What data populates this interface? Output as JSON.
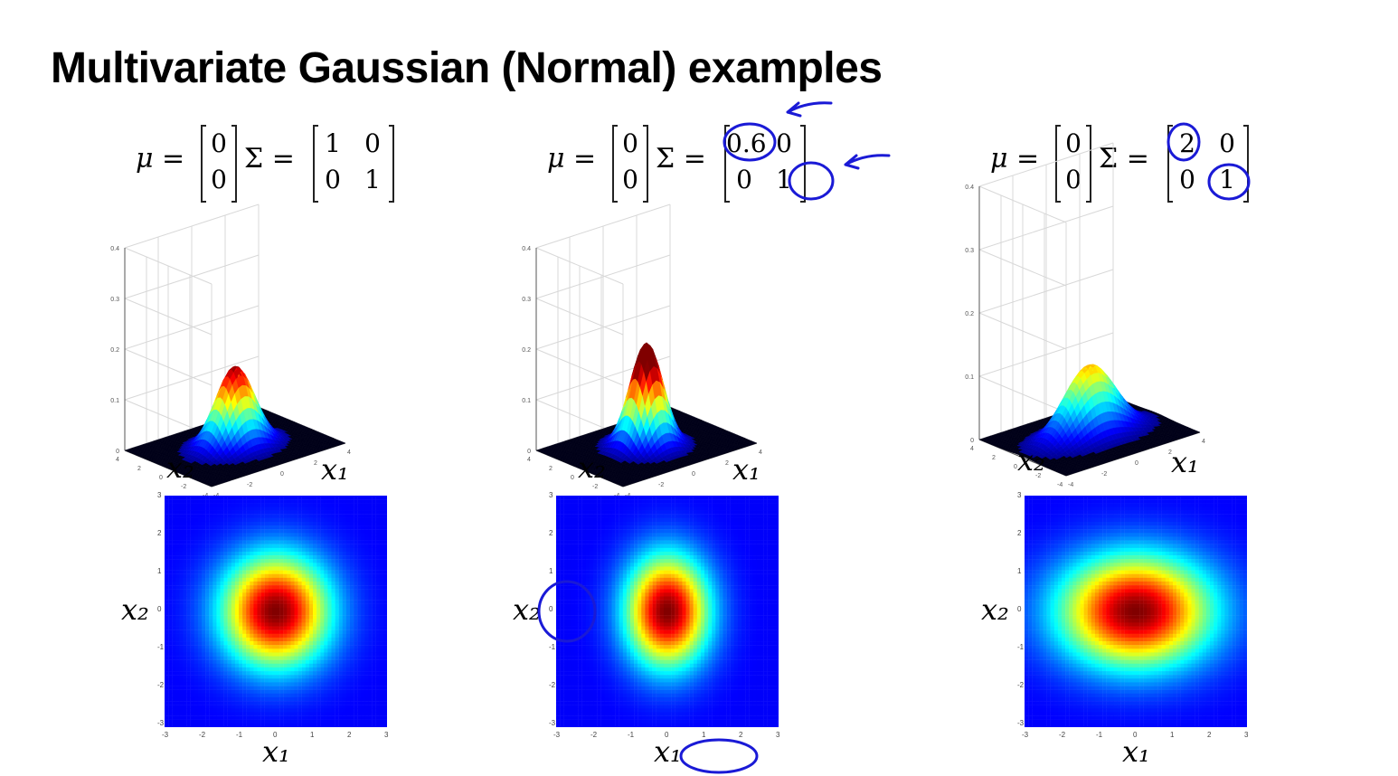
{
  "title": "Multivariate Gaussian (Normal) examples",
  "annotation_color": "#1a1ad6",
  "colormap": "jet",
  "chart_data": [
    {
      "type": "surface+heatmap",
      "mu": [
        "0",
        "0"
      ],
      "sigma": [
        [
          "1",
          "0"
        ],
        [
          "0",
          "1"
        ]
      ],
      "sigma_values": [
        [
          1,
          0
        ],
        [
          0,
          1
        ]
      ],
      "zticks": [
        "0.4",
        "0.3",
        "0.2",
        "0.1",
        "0"
      ],
      "x1_ticks": [
        "-4",
        "-2",
        "0",
        "2",
        "4"
      ],
      "x2_ticks": [
        "4",
        "2",
        "0",
        "-2",
        "-4"
      ],
      "heat_ticks": [
        "-3",
        "-2",
        "-1",
        "0",
        "1",
        "2",
        "3"
      ],
      "xlabel": "x₁",
      "ylabel": "x₂",
      "circled": []
    },
    {
      "type": "surface+heatmap",
      "mu": [
        "0",
        "0"
      ],
      "sigma": [
        [
          "0.6",
          "0"
        ],
        [
          "0",
          "1"
        ]
      ],
      "sigma_values": [
        [
          0.6,
          0
        ],
        [
          0,
          1
        ]
      ],
      "zticks": [
        "0.4",
        "0.3",
        "0.2",
        "0.1",
        "0"
      ],
      "x1_ticks": [
        "-4",
        "-2",
        "0",
        "2",
        "4"
      ],
      "x2_ticks": [
        "4",
        "2",
        "0",
        "-2",
        "-4"
      ],
      "heat_ticks": [
        "-3",
        "-2",
        "-1",
        "0",
        "1",
        "2",
        "3"
      ],
      "xlabel": "x₁",
      "ylabel": "x₂",
      "circled": [
        "sigma_11",
        "sigma_22",
        "xlabel",
        "ylabel"
      ]
    },
    {
      "type": "surface+heatmap",
      "mu": [
        "0",
        "0"
      ],
      "sigma": [
        [
          "2",
          "0"
        ],
        [
          "0",
          "1"
        ]
      ],
      "sigma_values": [
        [
          2,
          0
        ],
        [
          0,
          1
        ]
      ],
      "zticks": [
        "0.4",
        "0.3",
        "0.2",
        "0.1",
        "0"
      ],
      "x1_ticks": [
        "-4",
        "-2",
        "0",
        "2",
        "4"
      ],
      "x2_ticks": [
        "4",
        "2",
        "0",
        "-2",
        "-4"
      ],
      "heat_ticks": [
        "-3",
        "-2",
        "-1",
        "0",
        "1",
        "2",
        "3"
      ],
      "xlabel": "x₁",
      "ylabel": "x₂",
      "circled": [
        "sigma_11",
        "sigma_22"
      ]
    }
  ],
  "symbols": {
    "mu": "μ =",
    "sigma": "Σ ="
  }
}
